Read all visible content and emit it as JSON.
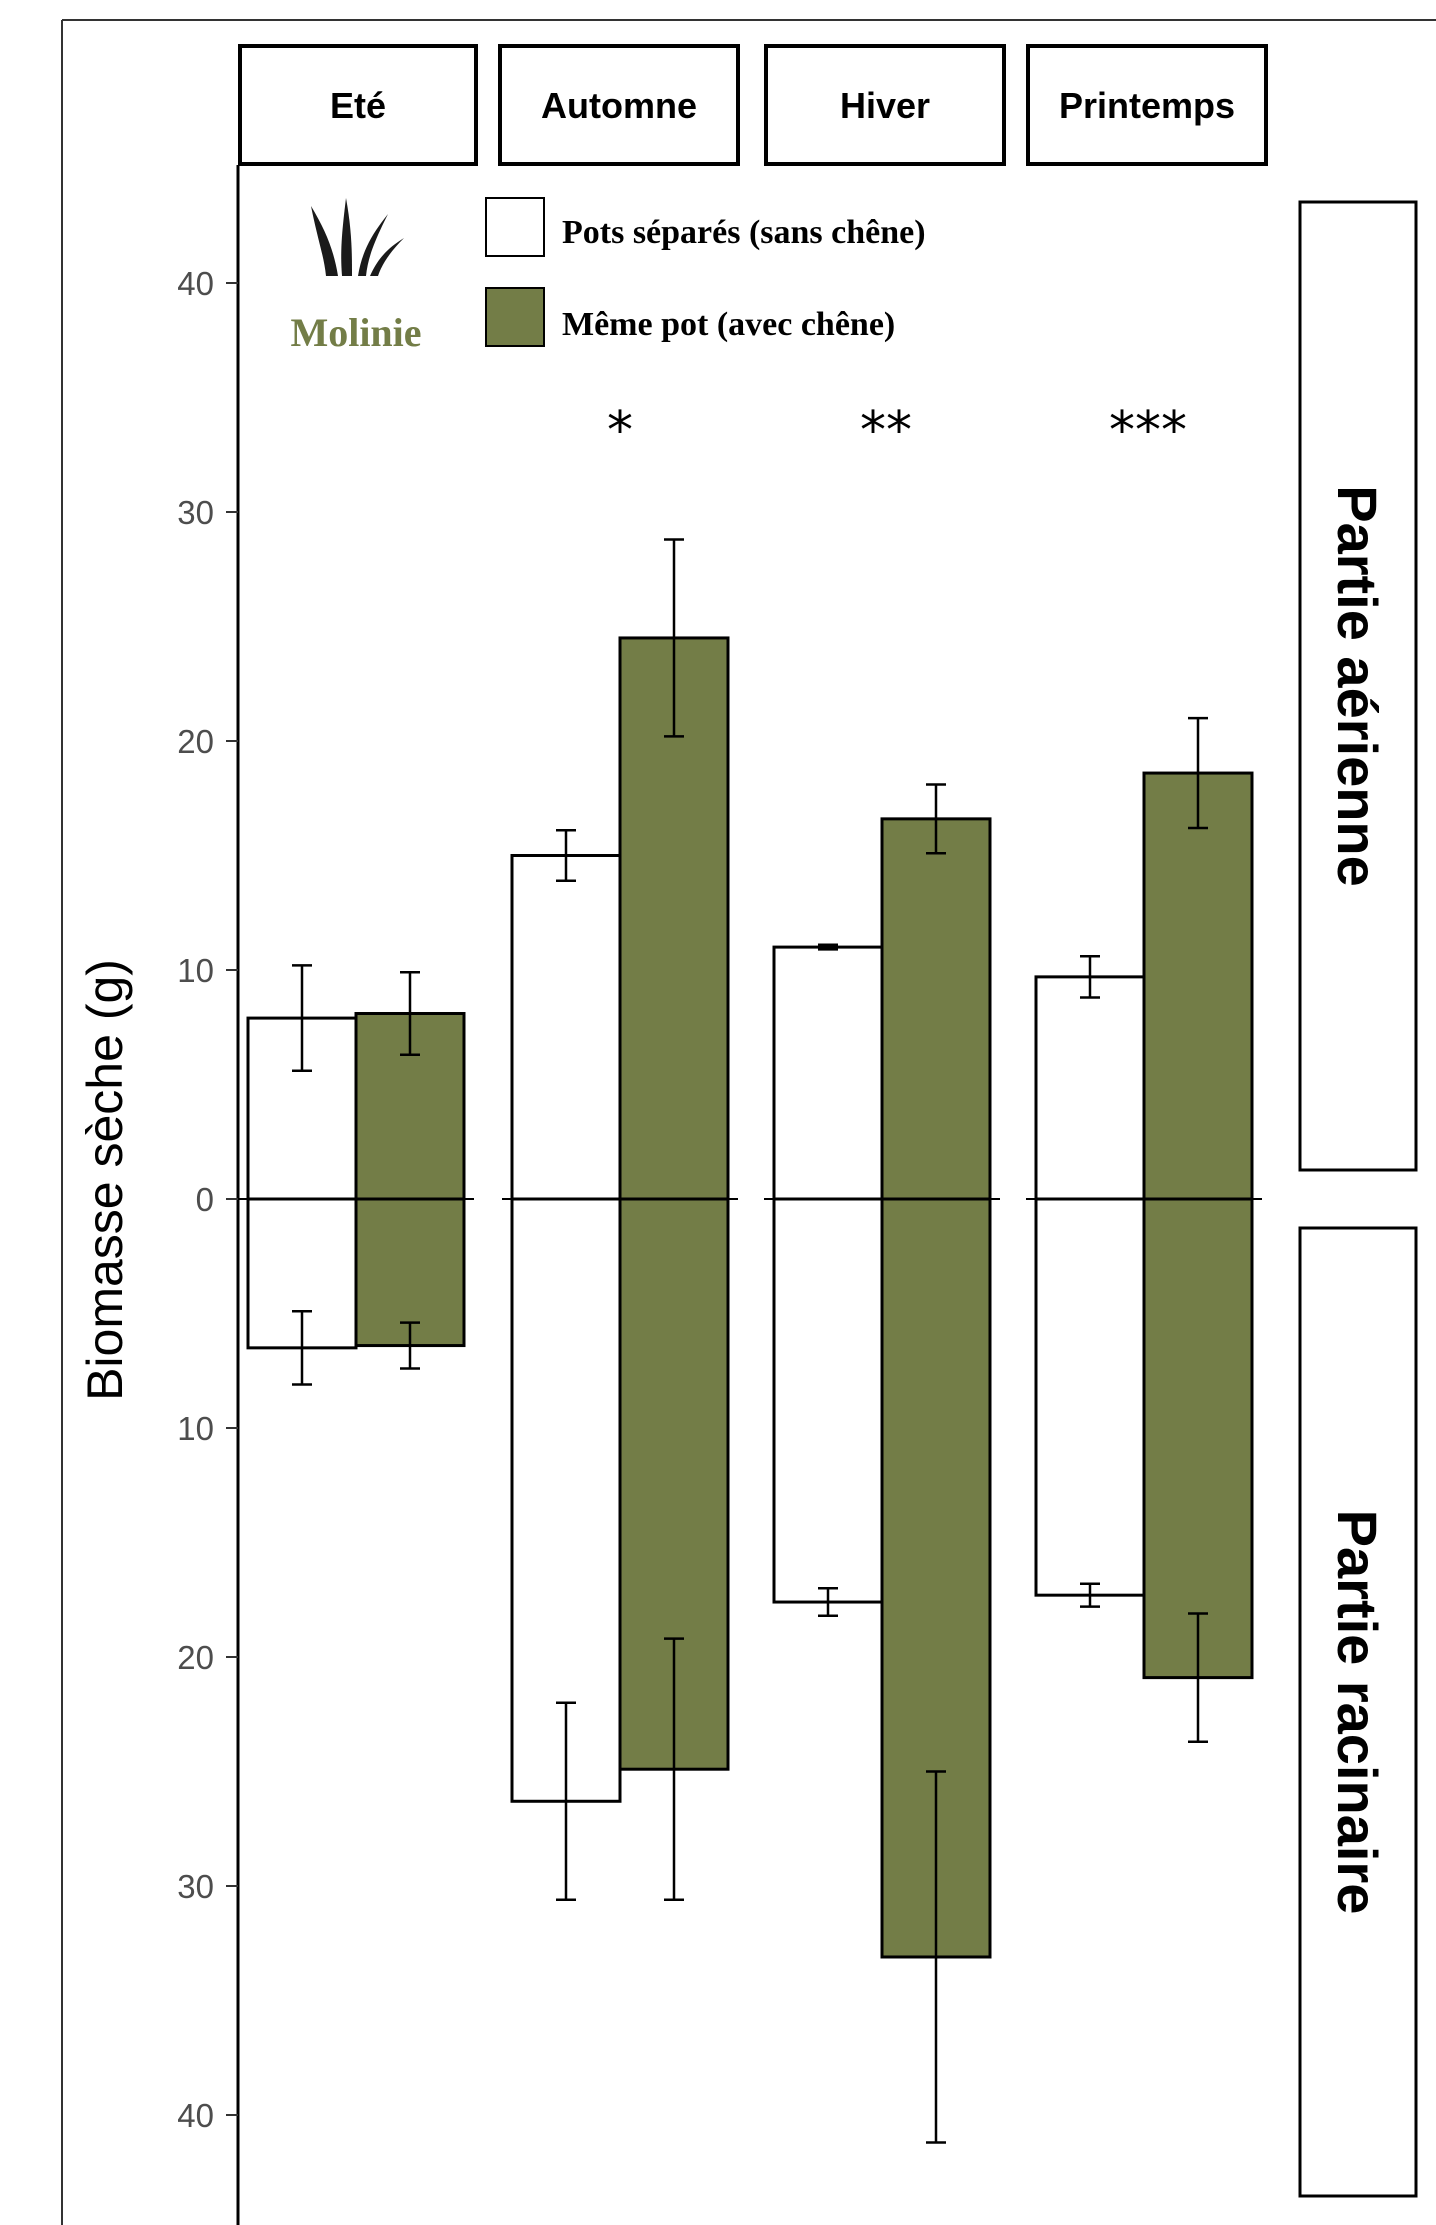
{
  "chart_data": {
    "type": "bar",
    "ylabel": "Biomasse sèche (g)",
    "y_ticks": [
      {
        "value": 40,
        "label": "40"
      },
      {
        "value": 30,
        "label": "30"
      },
      {
        "value": 20,
        "label": "20"
      },
      {
        "value": 10,
        "label": "10"
      },
      {
        "value": 0,
        "label": "0"
      },
      {
        "value": -10,
        "label": "10"
      },
      {
        "value": -20,
        "label": "20"
      },
      {
        "value": -30,
        "label": "30"
      },
      {
        "value": -40,
        "label": "40"
      }
    ],
    "ylim": [
      -45,
      45
    ],
    "categories": [
      "Eté",
      "Automne",
      "Hiver",
      "Printemps"
    ],
    "significance": [
      "",
      "*",
      "**",
      "***"
    ],
    "panels": [
      "Partie aérienne",
      "Partie racinaire"
    ],
    "species": "Molinie",
    "series": [
      {
        "name": "Pots séparés (sans chêne)",
        "color": "#ffffff",
        "aerial": [
          7.9,
          15.0,
          11.0,
          9.7
        ],
        "aerial_err": [
          2.3,
          1.1,
          0.1,
          0.9
        ],
        "root": [
          6.5,
          26.3,
          17.6,
          17.3
        ],
        "root_err": [
          1.6,
          4.3,
          0.6,
          0.5
        ]
      },
      {
        "name": "Même pot (avec chêne)",
        "color": "#737d47",
        "aerial": [
          8.1,
          24.5,
          16.6,
          18.6
        ],
        "aerial_err": [
          1.8,
          4.3,
          1.5,
          2.4
        ],
        "root": [
          6.4,
          24.9,
          33.1,
          20.9
        ],
        "root_err": [
          1.0,
          5.7,
          8.1,
          2.8
        ]
      }
    ]
  }
}
